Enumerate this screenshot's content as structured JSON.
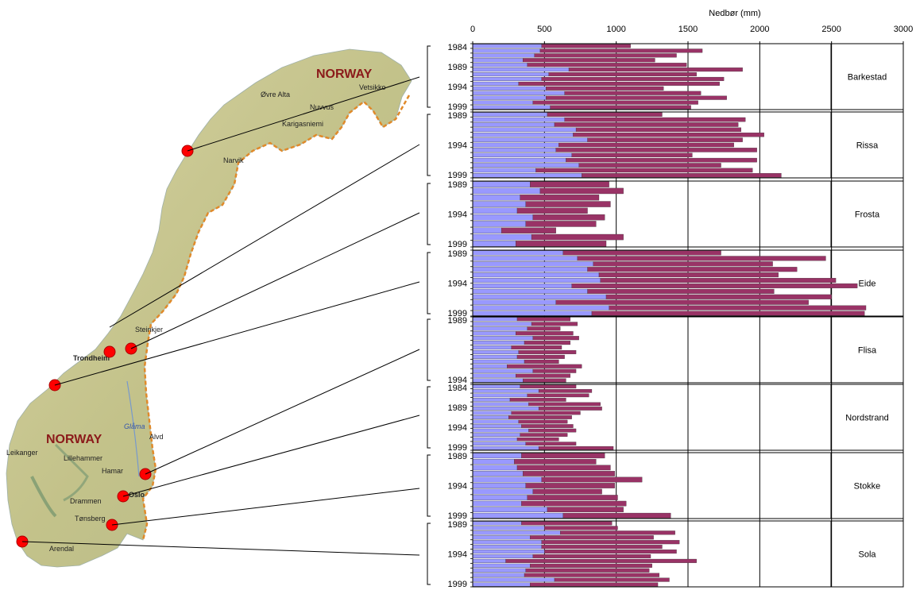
{
  "map": {
    "country_label_north": "NORWAY",
    "country_label_south": "NORWAY",
    "places": [
      {
        "name": "Vetsikko"
      },
      {
        "name": "Øvre Alta"
      },
      {
        "name": "Nuvvus"
      },
      {
        "name": "Karigasniemi"
      },
      {
        "name": "Narvik"
      },
      {
        "name": "Steinkjer"
      },
      {
        "name": "Trondheim"
      },
      {
        "name": "Lillehammer"
      },
      {
        "name": "Hamar"
      },
      {
        "name": "Oslo"
      },
      {
        "name": "Drammen"
      },
      {
        "name": "Tønsberg"
      },
      {
        "name": "Arendal"
      },
      {
        "name": "Leikanger"
      },
      {
        "name": "Glåma"
      },
      {
        "name": "Alvd"
      }
    ],
    "colors": {
      "station": "#ff0000",
      "land": "#c9c28e",
      "sea": "#ffffff",
      "border": "#e08a2a"
    }
  },
  "chart_data": {
    "type": "bar",
    "stacked": true,
    "orientation": "horizontal",
    "xlabel": "Nedbør (mm)",
    "xlim": [
      0,
      3000
    ],
    "xticks": [
      0,
      500,
      1000,
      1500,
      2000,
      2500,
      3000
    ],
    "grid": true,
    "colors": {
      "lower": "#9999ff",
      "upper": "#993366"
    },
    "stations": [
      {
        "name": "Barkestad",
        "ytick_labels": [
          "1984",
          "1989",
          "1994",
          "1999"
        ],
        "lower": [
          480,
          470,
          430,
          350,
          380,
          670,
          530,
          480,
          320,
          510,
          640,
          510,
          420,
          540
        ],
        "total": [
          1100,
          1600,
          1420,
          1270,
          1490,
          1880,
          1560,
          1750,
          1720,
          1330,
          1590,
          1770,
          1570,
          1520
        ]
      },
      {
        "name": "Rissa",
        "ytick_labels": [
          "1989",
          "1994",
          "1999"
        ],
        "lower": [
          520,
          640,
          570,
          720,
          700,
          800,
          600,
          580,
          690,
          650,
          740,
          440,
          760
        ],
        "total": [
          1320,
          1900,
          1850,
          1870,
          2030,
          1880,
          1820,
          1980,
          1530,
          1980,
          1730,
          1950,
          2150
        ]
      },
      {
        "name": "Frosta",
        "ytick_labels": [
          "1989",
          "1994",
          "1999"
        ],
        "lower": [
          400,
          470,
          330,
          370,
          310,
          420,
          370,
          200,
          410,
          300
        ],
        "total": [
          950,
          1050,
          880,
          960,
          800,
          920,
          860,
          580,
          1050,
          930
        ]
      },
      {
        "name": "Eide",
        "ytick_labels": [
          "1989",
          "1994",
          "1999"
        ],
        "lower": [
          630,
          730,
          840,
          800,
          880,
          890,
          690,
          800,
          930,
          580,
          950,
          830
        ],
        "total": [
          1730,
          2460,
          2090,
          2260,
          2130,
          2530,
          2680,
          2100,
          2500,
          2340,
          2740,
          2730
        ]
      },
      {
        "name": "Flisa",
        "ytick_labels": [
          "1989",
          "1994"
        ],
        "lower": [
          310,
          410,
          380,
          300,
          420,
          360,
          270,
          320,
          310,
          360,
          240,
          420,
          300,
          350
        ],
        "total": [
          680,
          730,
          610,
          700,
          740,
          680,
          620,
          720,
          640,
          600,
          760,
          720,
          680,
          650
        ]
      },
      {
        "name": "Nordstrand",
        "ytick_labels": [
          "1984",
          "1989",
          "1994",
          "1999"
        ],
        "lower": [
          330,
          460,
          380,
          260,
          390,
          460,
          270,
          250,
          320,
          340,
          390,
          330,
          310,
          370,
          460
        ],
        "total": [
          720,
          830,
          810,
          650,
          890,
          900,
          750,
          690,
          660,
          700,
          720,
          660,
          600,
          720,
          980
        ]
      },
      {
        "name": "Stokke",
        "ytick_labels": [
          "1989",
          "1994",
          "1999"
        ],
        "lower": [
          340,
          290,
          310,
          350,
          480,
          370,
          420,
          380,
          340,
          520,
          630
        ],
        "total": [
          920,
          860,
          960,
          990,
          1180,
          990,
          900,
          1010,
          1070,
          1050,
          1380
        ]
      },
      {
        "name": "Sola",
        "ytick_labels": [
          "1989",
          "1994",
          "1999"
        ],
        "lower": [
          340,
          500,
          610,
          400,
          480,
          480,
          500,
          420,
          230,
          400,
          370,
          360,
          570,
          400
        ],
        "total": [
          970,
          1010,
          1410,
          1260,
          1440,
          1320,
          1420,
          1240,
          1560,
          1250,
          1230,
          1300,
          1370,
          1290
        ]
      }
    ]
  }
}
